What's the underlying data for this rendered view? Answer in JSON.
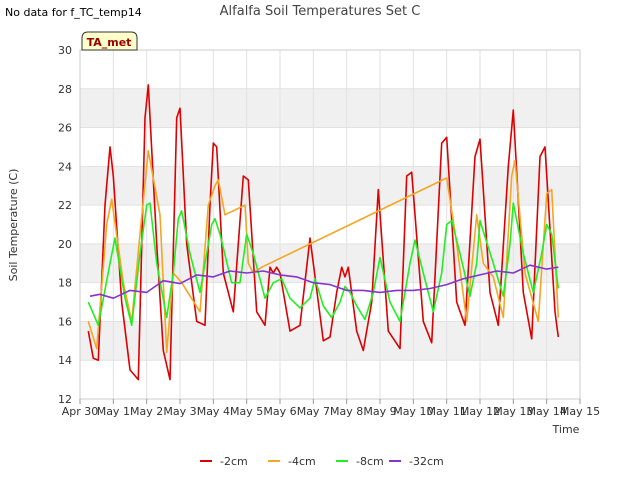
{
  "page": {
    "status_text": "No data for f_TC_temp14",
    "badge": "TA_met"
  },
  "chart_data": {
    "type": "line",
    "title": "Alfalfa Soil Temperatures Set C",
    "xlabel": "Time",
    "ylabel": "Soil Temperature (C)",
    "ylim": [
      12,
      30
    ],
    "yticks": [
      12,
      14,
      16,
      18,
      20,
      22,
      24,
      26,
      28,
      30
    ],
    "xlim": [
      0,
      15
    ],
    "xticks": [
      0,
      1,
      2,
      3,
      4,
      5,
      6,
      7,
      8,
      9,
      10,
      11,
      12,
      13,
      14,
      15
    ],
    "xtick_labels": [
      "Apr 30",
      "May 1",
      "May 2",
      "May 3",
      "May 4",
      "May 5",
      "May 6",
      "May 7",
      "May 8",
      "May 9",
      "May 10",
      "May 11",
      "May 12",
      "May 13",
      "May 14",
      "May 15"
    ],
    "grid": true,
    "background_bands": "alternating grey",
    "legend_position": "bottom",
    "series": [
      {
        "name": "-2cm",
        "color": "#dd0000",
        "x": [
          0.25,
          0.4,
          0.55,
          0.75,
          0.9,
          1.0,
          1.25,
          1.5,
          1.75,
          1.95,
          2.05,
          2.3,
          2.5,
          2.7,
          2.9,
          3.0,
          3.2,
          3.5,
          3.75,
          3.9,
          4.0,
          4.1,
          4.3,
          4.6,
          4.9,
          5.05,
          5.3,
          5.55,
          5.7,
          5.8,
          5.9,
          6.0,
          6.3,
          6.6,
          6.9,
          7.0,
          7.3,
          7.5,
          7.7,
          7.85,
          7.95,
          8.05,
          8.3,
          8.5,
          8.75,
          8.95,
          9.25,
          9.6,
          9.8,
          9.95,
          10.3,
          10.55,
          10.85,
          11.0,
          11.3,
          11.55,
          11.85,
          12.0,
          12.3,
          12.55,
          12.85,
          13.0,
          13.3,
          13.55,
          13.8,
          13.95,
          14.25,
          14.35
        ],
        "y": [
          15.5,
          14.1,
          14.0,
          22.0,
          25.0,
          23.5,
          17.0,
          13.5,
          13.0,
          26.5,
          28.2,
          20.0,
          14.5,
          13.0,
          26.5,
          27.0,
          20.0,
          16.0,
          15.8,
          22.0,
          25.2,
          25.0,
          18.5,
          16.5,
          23.5,
          23.3,
          16.5,
          15.8,
          18.8,
          18.5,
          18.8,
          18.5,
          15.5,
          15.8,
          20.3,
          19.0,
          15.0,
          15.2,
          17.5,
          18.8,
          18.3,
          18.8,
          15.5,
          14.5,
          17.0,
          22.8,
          15.5,
          14.6,
          23.5,
          23.7,
          16.0,
          14.9,
          25.2,
          25.5,
          17.0,
          15.8,
          24.5,
          25.4,
          17.5,
          15.8,
          24.0,
          26.9,
          17.5,
          15.1,
          24.5,
          25.0,
          16.5,
          15.2
        ]
      },
      {
        "name": "-4cm",
        "color": "#f5a623",
        "x": [
          0.25,
          0.5,
          0.8,
          0.95,
          1.3,
          1.55,
          1.8,
          2.05,
          2.4,
          2.6,
          2.8,
          3.05,
          3.6,
          3.85,
          4.05,
          4.15,
          4.35,
          4.95,
          5.05,
          5.2,
          5.45,
          11.0,
          11.3,
          11.6,
          11.9,
          12.1,
          12.4,
          12.7,
          12.95,
          13.05,
          13.35,
          13.75,
          14.0,
          14.15,
          14.35
        ],
        "y": [
          16.0,
          14.6,
          21.0,
          22.3,
          18.0,
          16.0,
          20.5,
          24.8,
          21.5,
          14.4,
          18.5,
          18.0,
          16.5,
          22.0,
          23.0,
          23.3,
          21.5,
          22.0,
          19.0,
          18.5,
          18.8,
          23.4,
          20.0,
          16.0,
          21.5,
          19.0,
          18.3,
          16.2,
          23.5,
          24.3,
          18.5,
          16.0,
          22.6,
          22.8,
          16.2
        ]
      },
      {
        "name": "-8cm",
        "color": "#22ee22",
        "x": [
          0.25,
          0.55,
          0.9,
          1.05,
          1.35,
          1.55,
          1.8,
          2.0,
          2.1,
          2.3,
          2.6,
          2.8,
          2.95,
          3.05,
          3.3,
          3.6,
          3.8,
          3.95,
          4.05,
          4.2,
          4.55,
          4.8,
          5.0,
          5.2,
          5.55,
          5.8,
          6.05,
          6.3,
          6.6,
          6.9,
          7.05,
          7.3,
          7.55,
          7.8,
          7.95,
          8.1,
          8.3,
          8.55,
          8.8,
          9.0,
          9.3,
          9.6,
          9.9,
          10.05,
          10.3,
          10.6,
          10.85,
          11.0,
          11.15,
          11.4,
          11.7,
          11.9,
          12.0,
          12.4,
          12.7,
          12.9,
          13.0,
          13.3,
          13.6,
          13.85,
          14.0,
          14.15,
          14.35
        ],
        "y": [
          17.0,
          15.8,
          19.0,
          20.3,
          17.2,
          15.8,
          19.5,
          22.0,
          22.1,
          19.0,
          16.2,
          18.5,
          21.3,
          21.7,
          19.5,
          17.5,
          19.5,
          21.0,
          21.3,
          20.5,
          18.0,
          18.0,
          20.5,
          19.5,
          17.2,
          18.0,
          18.2,
          17.2,
          16.7,
          17.2,
          18.2,
          16.8,
          16.2,
          17.0,
          17.8,
          17.5,
          16.8,
          16.1,
          17.5,
          19.3,
          17.0,
          16.0,
          19.0,
          20.2,
          18.5,
          16.5,
          18.5,
          21.0,
          21.2,
          19.5,
          17.3,
          19.0,
          21.2,
          19.0,
          17.3,
          20.0,
          22.1,
          19.5,
          17.5,
          19.5,
          21.0,
          20.5,
          17.7
        ]
      },
      {
        "name": "-32cm",
        "color": "#8833cc",
        "x": [
          0.3,
          0.6,
          1.0,
          1.5,
          2.0,
          2.5,
          3.0,
          3.5,
          4.0,
          4.5,
          5.0,
          5.5,
          6.0,
          6.5,
          7.0,
          7.5,
          8.0,
          8.5,
          9.0,
          9.5,
          10.0,
          10.5,
          11.0,
          11.5,
          12.0,
          12.5,
          13.0,
          13.5,
          14.0,
          14.35
        ],
        "y": [
          17.3,
          17.4,
          17.2,
          17.6,
          17.5,
          18.1,
          17.95,
          18.4,
          18.3,
          18.6,
          18.5,
          18.6,
          18.4,
          18.3,
          18.0,
          17.9,
          17.6,
          17.6,
          17.5,
          17.6,
          17.6,
          17.7,
          17.9,
          18.2,
          18.4,
          18.6,
          18.5,
          18.9,
          18.7,
          18.8
        ]
      }
    ]
  }
}
